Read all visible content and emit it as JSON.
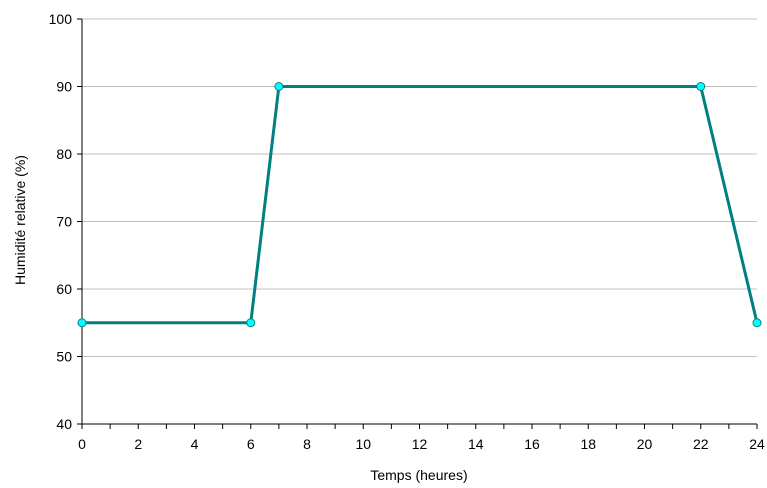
{
  "chart_data": {
    "type": "line",
    "title": "",
    "xlabel": "Temps (heures)",
    "ylabel": "Humidité relative (%)",
    "xlim": [
      0,
      24
    ],
    "ylim": [
      40,
      100
    ],
    "x_ticks": [
      0,
      2,
      4,
      6,
      8,
      10,
      12,
      14,
      16,
      18,
      20,
      22,
      24
    ],
    "y_ticks": [
      40,
      50,
      60,
      70,
      80,
      90,
      100
    ],
    "x_minor_step": 1,
    "grid": "horizontal",
    "legend": "none",
    "series": [
      {
        "x": [
          0,
          6,
          7,
          22,
          24
        ],
        "y": [
          55,
          55,
          90,
          90,
          55
        ],
        "color": "#008080",
        "marker_color": "#00ffff"
      }
    ]
  }
}
